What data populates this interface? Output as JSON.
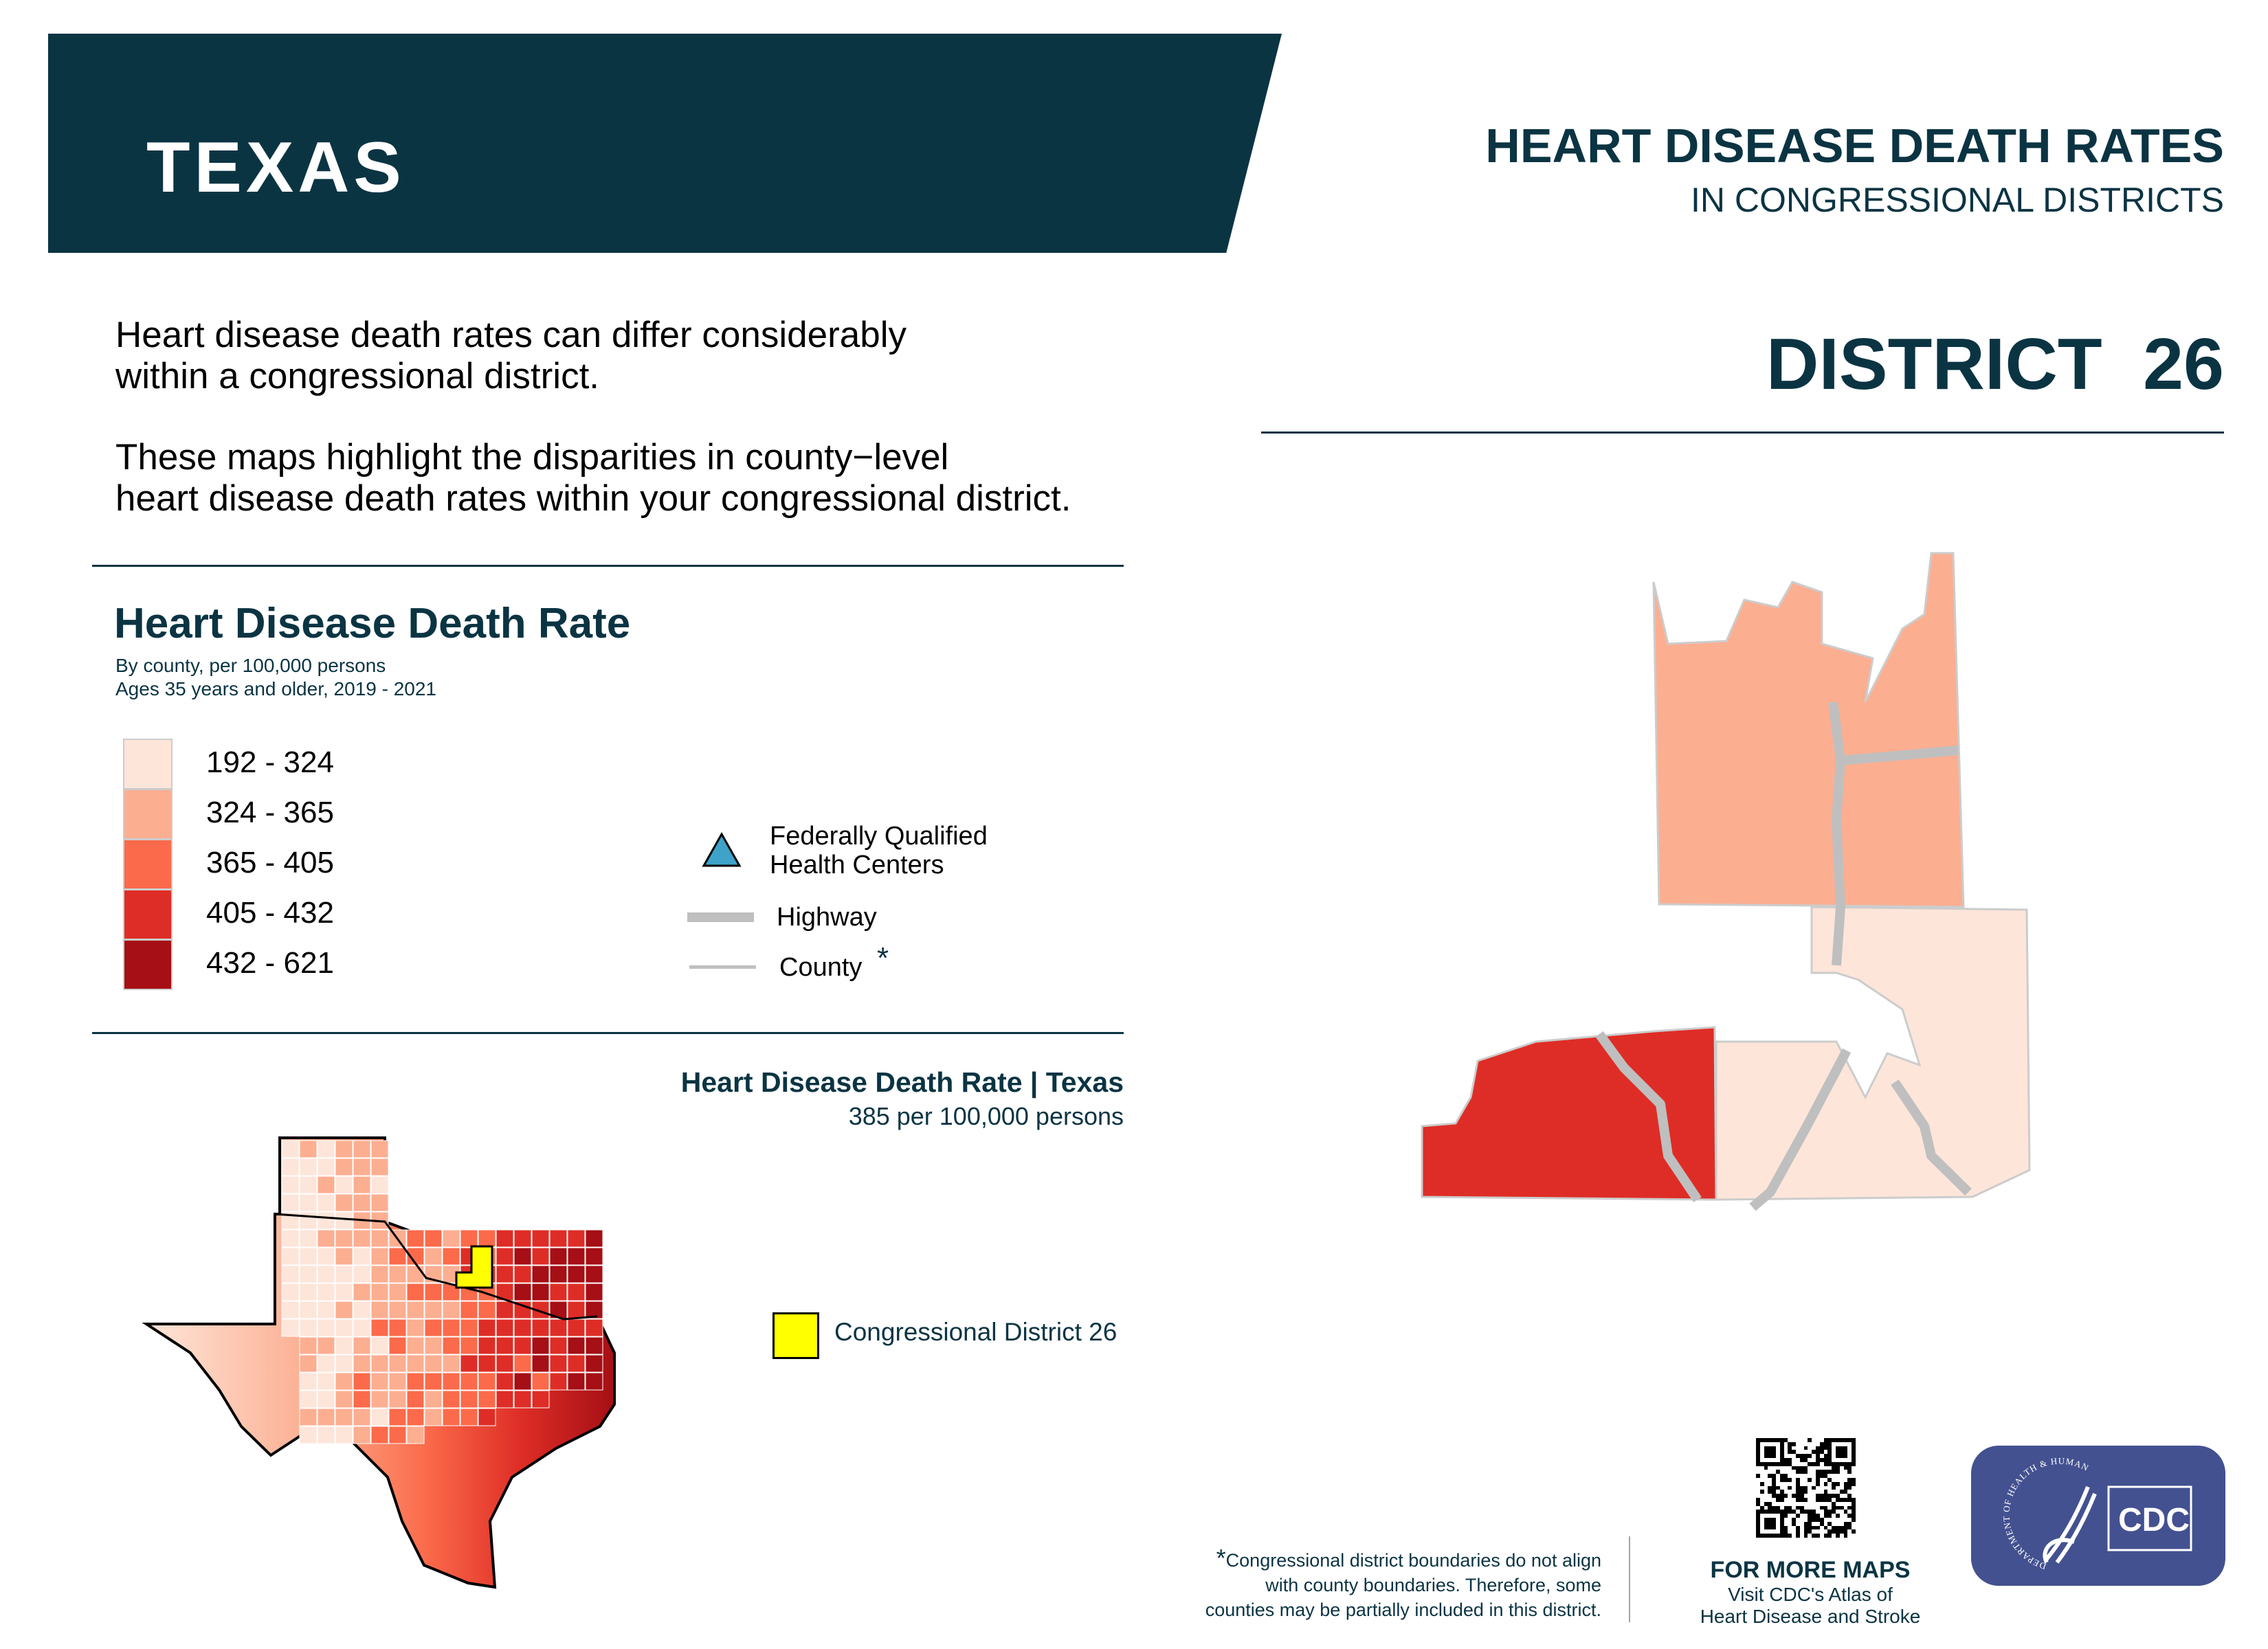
{
  "header": {
    "state": "TEXAS",
    "title": "HEART DISEASE DEATH RATES",
    "subtitle": "IN CONGRESSIONAL DISTRICTS",
    "district": "DISTRICT 26"
  },
  "intro": {
    "p1_l1": "Heart disease death rates can differ considerably",
    "p1_l2": "within a congressional district.",
    "p2_l1": "These maps highlight the disparities in county−level",
    "p2_l2": "heart disease death rates within your congressional district."
  },
  "legend": {
    "title": "Heart Disease Death Rate",
    "sub1": "By county, per 100,000 persons",
    "sub2": "Ages 35 years and older, 2019 - 2021",
    "bins": [
      {
        "label": "192 - 324",
        "color": "#FEE5D9"
      },
      {
        "label": "324 - 365",
        "color": "#FCAE91"
      },
      {
        "label": "365 - 405",
        "color": "#FB6A4A"
      },
      {
        "label": "405 - 432",
        "color": "#DE2D26"
      },
      {
        "label": "432 - 621",
        "color": "#A50F15"
      }
    ],
    "fqhc_l1": "Federally Qualified",
    "fqhc_l2": "Health Centers",
    "highway": "Highway",
    "county": "County",
    "asterisk": "*"
  },
  "state_map": {
    "title": "Heart Disease Death Rate | Texas",
    "average": "385 per 100,000 persons",
    "cd_label": "Congressional District 26",
    "cd_color": "#FFFF00"
  },
  "footer": {
    "note_star": "*",
    "note_l1": "Congressional district boundaries do not align",
    "note_l2": "with county boundaries. Therefore, some",
    "note_l3": "counties may be partially included in this district.",
    "more_title": "FOR MORE MAPS",
    "more_l1": "Visit CDC's Atlas of",
    "more_l2": "Heart Disease and Stroke",
    "logo_text": "CDC",
    "hhs_text": "DEPARTMENT OF HEALTH & HUMAN SERVICES·USA"
  }
}
